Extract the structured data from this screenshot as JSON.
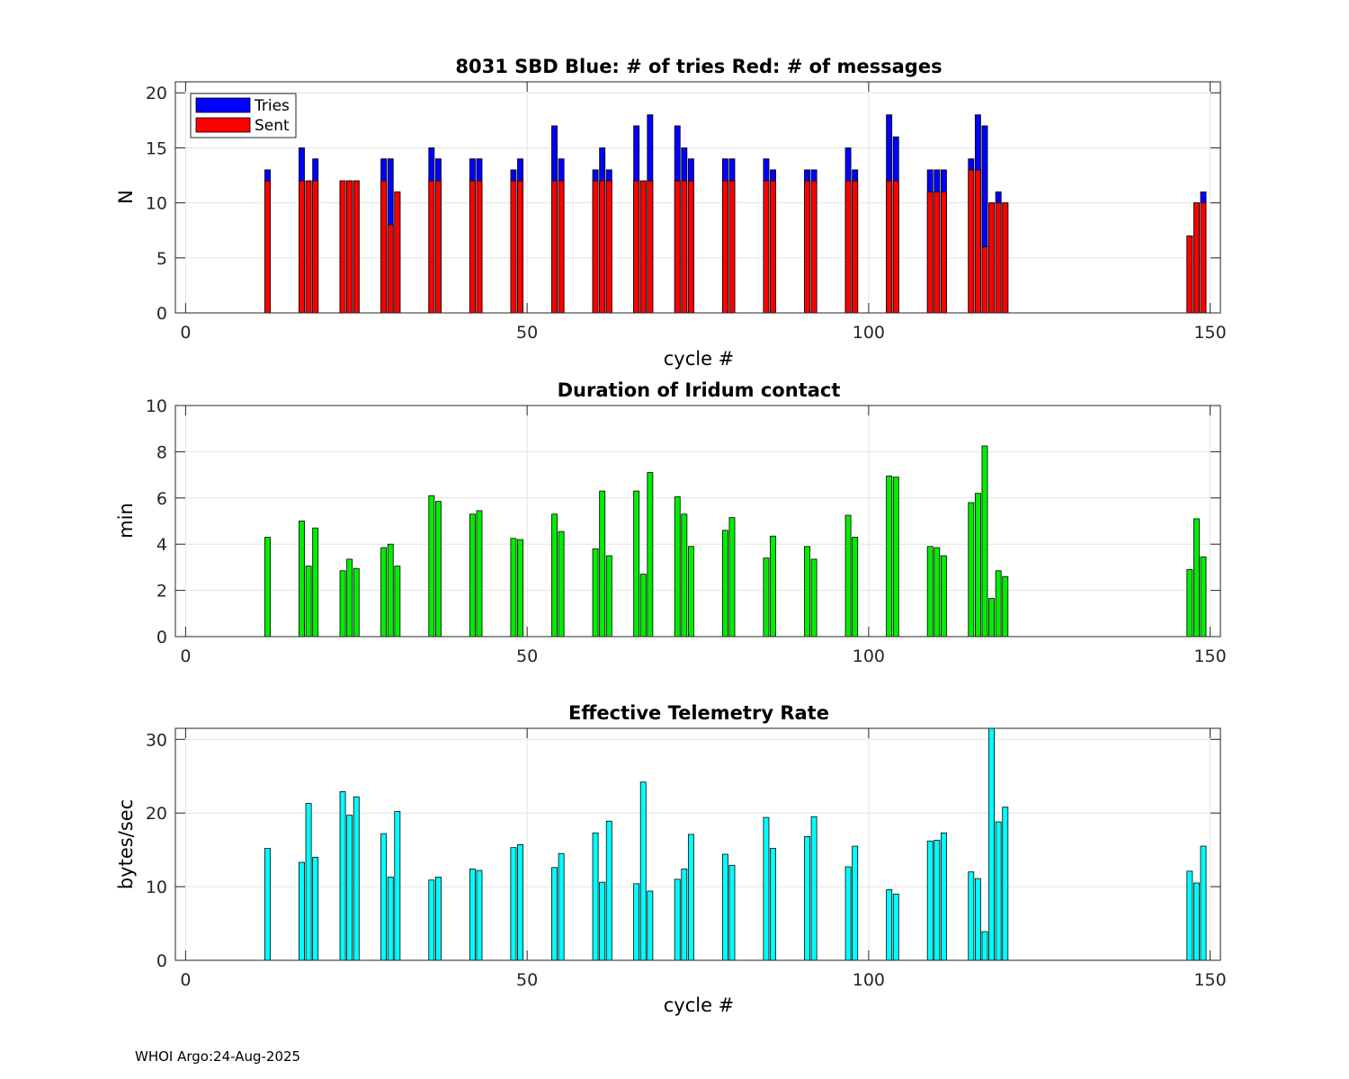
{
  "figure": {
    "footer": "WHOI Argo:24-Aug-2025"
  },
  "chart_data": [
    {
      "type": "bar",
      "title": "8031 SBD  Blue: # of tries   Red: # of messages",
      "xlabel": "cycle #",
      "ylabel": "N",
      "xlim": [
        -1.5,
        151.5
      ],
      "ylim": [
        0,
        21
      ],
      "xticks": [
        0,
        50,
        100,
        150
      ],
      "yticks": [
        0,
        5,
        10,
        15,
        20
      ],
      "grid": true,
      "legend": {
        "position": "top-left",
        "entries": [
          "Tries",
          "Sent"
        ]
      },
      "x": [
        12,
        17,
        18,
        19,
        23,
        24,
        25,
        29,
        30,
        31,
        36,
        37,
        42,
        43,
        48,
        49,
        54,
        55,
        60,
        61,
        62,
        66,
        67,
        68,
        72,
        73,
        74,
        79,
        80,
        85,
        86,
        91,
        92,
        97,
        98,
        103,
        104,
        109,
        110,
        111,
        115,
        116,
        117,
        118,
        119,
        120,
        147,
        148,
        149
      ],
      "series": [
        {
          "name": "Tries",
          "color": "#0000ff",
          "values": [
            13,
            15,
            12,
            14,
            12,
            12,
            12,
            14,
            14,
            11,
            15,
            14,
            14,
            14,
            13,
            14,
            17,
            14,
            13,
            15,
            13,
            17,
            12,
            18,
            17,
            15,
            14,
            14,
            14,
            14,
            13,
            13,
            13,
            15,
            13,
            18,
            16,
            13,
            13,
            13,
            14,
            18,
            17,
            10,
            11,
            10,
            7,
            10,
            11
          ]
        },
        {
          "name": "Sent",
          "color": "#ff0000",
          "values": [
            12,
            12,
            12,
            12,
            12,
            12,
            12,
            12,
            8,
            11,
            12,
            12,
            12,
            12,
            12,
            12,
            12,
            12,
            12,
            12,
            12,
            12,
            12,
            12,
            12,
            12,
            12,
            12,
            12,
            12,
            12,
            12,
            12,
            12,
            12,
            12,
            12,
            11,
            11,
            11,
            13,
            13,
            6,
            10,
            10,
            10,
            7,
            10,
            10
          ]
        }
      ]
    },
    {
      "type": "bar",
      "title": "Duration of Iridum contact",
      "xlabel": "",
      "ylabel": "min",
      "xlim": [
        -1.5,
        151.5
      ],
      "ylim": [
        0,
        10
      ],
      "xticks": [
        0,
        50,
        100,
        150
      ],
      "yticks": [
        0,
        2,
        4,
        6,
        8,
        10
      ],
      "grid": true,
      "x": [
        12,
        17,
        18,
        19,
        23,
        24,
        25,
        29,
        30,
        31,
        36,
        37,
        42,
        43,
        48,
        49,
        54,
        55,
        60,
        61,
        62,
        66,
        67,
        68,
        72,
        73,
        74,
        79,
        80,
        85,
        86,
        91,
        92,
        97,
        98,
        103,
        104,
        109,
        110,
        111,
        115,
        116,
        117,
        118,
        119,
        120,
        147,
        148,
        149
      ],
      "series": [
        {
          "name": "Duration",
          "color": "#00ee00",
          "values": [
            4.3,
            5.0,
            3.05,
            4.7,
            2.85,
            3.35,
            2.95,
            3.85,
            4.0,
            3.05,
            6.1,
            5.85,
            5.3,
            5.45,
            4.25,
            4.2,
            5.3,
            4.55,
            3.8,
            6.3,
            3.5,
            6.3,
            2.7,
            7.1,
            6.05,
            5.3,
            3.9,
            4.6,
            5.15,
            3.4,
            4.35,
            3.9,
            3.35,
            5.25,
            4.3,
            6.95,
            6.9,
            3.9,
            3.85,
            3.5,
            5.8,
            6.2,
            8.25,
            1.65,
            2.85,
            2.6,
            2.9,
            5.1,
            3.45
          ]
        }
      ]
    },
    {
      "type": "bar",
      "title": "Effective Telemetry Rate",
      "xlabel": "cycle #",
      "ylabel": "bytes/sec",
      "xlim": [
        -1.5,
        151.5
      ],
      "ylim": [
        0,
        31.5
      ],
      "xticks": [
        0,
        50,
        100,
        150
      ],
      "yticks": [
        0,
        10,
        20,
        30
      ],
      "grid": true,
      "x": [
        12,
        17,
        18,
        19,
        23,
        24,
        25,
        29,
        30,
        31,
        36,
        37,
        42,
        43,
        48,
        49,
        54,
        55,
        60,
        61,
        62,
        66,
        67,
        68,
        72,
        73,
        74,
        79,
        80,
        85,
        86,
        91,
        92,
        97,
        98,
        103,
        104,
        109,
        110,
        111,
        115,
        116,
        117,
        118,
        119,
        120,
        147,
        148,
        149
      ],
      "series": [
        {
          "name": "Rate",
          "color": "#00ffff",
          "values": [
            15.2,
            13.3,
            21.3,
            14.0,
            22.9,
            19.7,
            22.2,
            17.2,
            11.3,
            20.2,
            10.9,
            11.3,
            12.4,
            12.2,
            15.3,
            15.7,
            12.6,
            14.5,
            17.3,
            10.6,
            18.9,
            10.4,
            24.2,
            9.4,
            11.0,
            12.4,
            17.1,
            14.4,
            12.9,
            19.4,
            15.2,
            16.8,
            19.5,
            12.7,
            15.5,
            9.6,
            9.0,
            16.2,
            16.3,
            17.3,
            12.0,
            11.1,
            3.9,
            31.5,
            18.8,
            20.8,
            12.1,
            10.5,
            15.5
          ]
        }
      ]
    }
  ]
}
